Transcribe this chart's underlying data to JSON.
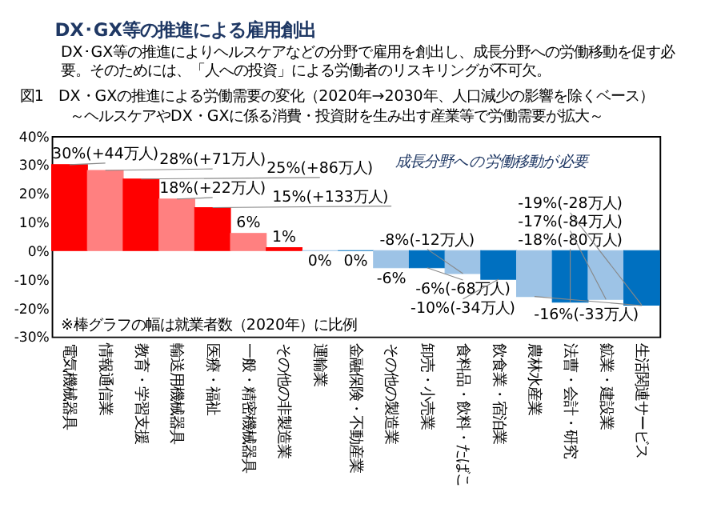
{
  "chart_data": {
    "type": "bar",
    "title": "図1　DX・GXの推進による労働需要の変化（2020年→2030年、人口減少の影響を除くベース）",
    "subtitle": "～ヘルスケアやDX・GXに係る消費・投資財を生み出す産業等で労働需要が拡大～",
    "annotations": [
      "DX･GX等の推進による雇用創出",
      "DX･GX等の推進によりヘルスケアなどの分野で雇用を創出し、成長分野への労働移動を促す必要。そのためには、「人への投資」による労働者のリスキリングが不可欠。",
      "成長分野への労働移動が必要",
      "※棒グラフの幅は就業者数（2020年）に比例"
    ],
    "categories": [
      "電気機械器具",
      "情報通信業",
      "教育・学習支援",
      "輸送用機械器具",
      "医療・福祉",
      "一般・精密機械器具",
      "その他の非製造業",
      "運輸業",
      "金融保険・不動産業",
      "その他の製造業",
      "卸売・小売業",
      "食料品・飲料・たばこ",
      "飲食業・宿泊業",
      "農林水産業",
      "法曹・会計・研究",
      "鉱業・建設業",
      "生活関連サービス"
    ],
    "values": [
      30,
      28,
      25,
      18,
      15,
      6,
      1,
      0,
      0,
      -6,
      -6,
      -8,
      -10,
      -16,
      -18,
      -17,
      -19
    ],
    "colors": [
      "#ff0000",
      "#ff8080",
      "#ff0000",
      "#ff8080",
      "#ff0000",
      "#ff8080",
      "#ff0000",
      "#9dc3e6",
      "#0070c0",
      "#9dc3e6",
      "#0070c0",
      "#9dc3e6",
      "#0070c0",
      "#9dc3e6",
      "#0070c0",
      "#9dc3e6",
      "#0070c0"
    ],
    "value_labels": [
      "30%(+44万人)",
      "28%(+71万人)",
      "25%(+86万人)",
      "18%(+22万人)",
      "15%(+133万人)",
      "6%",
      "1%",
      "0%",
      "0%",
      "-6%",
      "-6%(-68万人)",
      "-8%(-12万人)",
      "-10%(-34万人)",
      "-16%(-33万人)",
      "-18%(-80万人)",
      "-17%(-84万人)",
      "-19%(-28万人)"
    ],
    "ylim": [
      -30,
      40
    ],
    "yticks": [
      {
        "value": -30,
        "label": "-30%"
      },
      {
        "value": -20,
        "label": "-20%"
      },
      {
        "value": -10,
        "label": "-10%"
      },
      {
        "value": 0,
        "label": "0%"
      },
      {
        "value": 10,
        "label": "10%"
      },
      {
        "value": 20,
        "label": "20%"
      },
      {
        "value": 30,
        "label": "30%"
      },
      {
        "value": 40,
        "label": "40%"
      }
    ]
  }
}
